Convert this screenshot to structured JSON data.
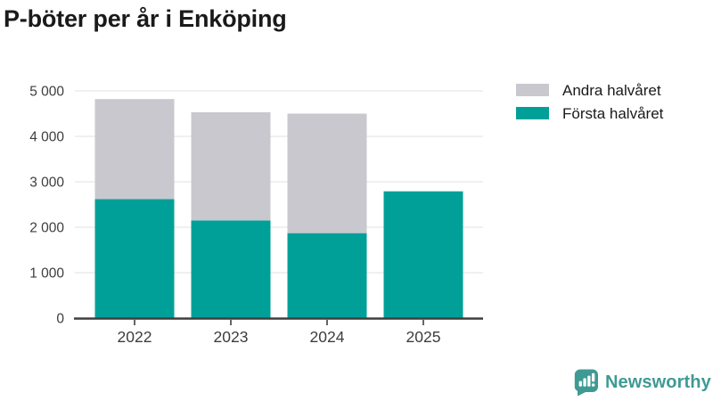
{
  "header": {
    "title": "P-böter per år i Enköping"
  },
  "footer": {
    "brand": "Newsworthy",
    "brand_color": "#3f9a94"
  },
  "chart_data": {
    "type": "bar",
    "stacked": true,
    "title": "P-böter per år i Enköping",
    "categories": [
      "2022",
      "2023",
      "2024",
      "2025"
    ],
    "series": [
      {
        "name": "Första halvåret",
        "color": "#00a099",
        "values": [
          2620,
          2150,
          1870,
          2790
        ]
      },
      {
        "name": "Andra halvåret",
        "color": "#c9c8ce",
        "values": [
          2200,
          2380,
          2630,
          0
        ]
      }
    ],
    "totals": [
      4820,
      4530,
      4500,
      2790
    ],
    "ylim": [
      0,
      5000
    ],
    "ytick_step": 1000,
    "ytick_labels": [
      "0",
      "1 000",
      "2 000",
      "3 000",
      "4 000",
      "5 000"
    ],
    "grid": true,
    "legend_position": "top-right",
    "legend_order": [
      "Andra halvåret",
      "Första halvåret"
    ],
    "colors": {
      "grid_line": "#e6e6e6",
      "axis_line": "#3f3f3f",
      "tick_label": "#3d3d3d",
      "background": "#ffffff"
    }
  }
}
